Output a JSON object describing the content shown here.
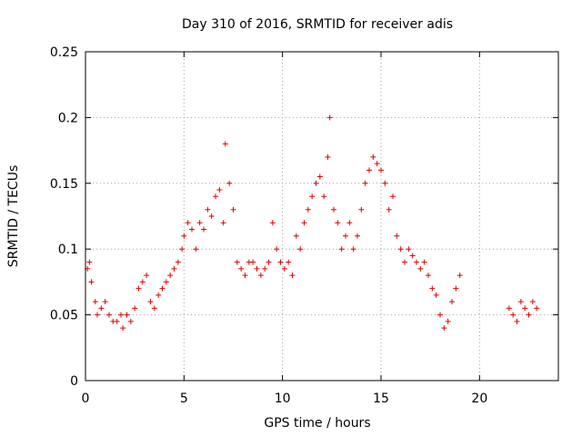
{
  "chart_data": {
    "type": "scatter",
    "title": "Day 310 of 2016, SRMTID for receiver adis",
    "xlabel": "GPS time / hours",
    "ylabel": "SRMTID / TECUs",
    "xlim": [
      0,
      24
    ],
    "ylim": [
      0,
      0.25
    ],
    "x_ticks": [
      0,
      5,
      10,
      15,
      20
    ],
    "x_tick_labels": [
      "0",
      "5",
      "10",
      "15",
      "20"
    ],
    "y_ticks": [
      0,
      0.05,
      0.1,
      0.15,
      0.2,
      0.25
    ],
    "y_tick_labels": [
      "0",
      "0.05",
      "0.1",
      "0.15",
      "0.2",
      "0.25"
    ],
    "grid": true,
    "grid_style": "dotted",
    "marker": "plus",
    "marker_color": "#e00000",
    "series": [
      {
        "name": "",
        "x": [
          0.1,
          0.2,
          0.3,
          0.5,
          0.6,
          0.8,
          1.0,
          1.2,
          1.4,
          1.6,
          1.8,
          1.9,
          2.1,
          2.3,
          2.5,
          2.7,
          2.9,
          3.1,
          3.3,
          3.5,
          3.7,
          3.9,
          4.1,
          4.3,
          4.5,
          4.7,
          4.9,
          5.0,
          5.2,
          5.4,
          5.6,
          5.8,
          6.0,
          6.2,
          6.4,
          6.6,
          6.8,
          7.0,
          7.1,
          7.3,
          7.5,
          7.7,
          7.9,
          8.1,
          8.3,
          8.5,
          8.7,
          8.9,
          9.1,
          9.3,
          9.5,
          9.7,
          9.9,
          10.1,
          10.3,
          10.5,
          10.7,
          10.9,
          11.1,
          11.3,
          11.5,
          11.7,
          11.9,
          12.1,
          12.3,
          12.4,
          12.6,
          12.8,
          13.0,
          13.2,
          13.4,
          13.6,
          13.8,
          14.0,
          14.2,
          14.4,
          14.6,
          14.8,
          15.0,
          15.2,
          15.4,
          15.6,
          15.8,
          16.0,
          16.2,
          16.4,
          16.6,
          16.8,
          17.0,
          17.2,
          17.4,
          17.6,
          17.8,
          18.0,
          18.2,
          18.4,
          18.6,
          18.8,
          19.0,
          21.5,
          21.7,
          21.9,
          22.1,
          22.3,
          22.5,
          22.7,
          22.9
        ],
        "y": [
          0.085,
          0.09,
          0.075,
          0.06,
          0.05,
          0.055,
          0.06,
          0.05,
          0.045,
          0.045,
          0.05,
          0.04,
          0.05,
          0.045,
          0.055,
          0.07,
          0.075,
          0.08,
          0.06,
          0.055,
          0.065,
          0.07,
          0.075,
          0.08,
          0.085,
          0.09,
          0.1,
          0.11,
          0.12,
          0.115,
          0.1,
          0.12,
          0.115,
          0.13,
          0.125,
          0.14,
          0.145,
          0.12,
          0.18,
          0.15,
          0.13,
          0.09,
          0.085,
          0.08,
          0.09,
          0.09,
          0.085,
          0.08,
          0.085,
          0.09,
          0.12,
          0.1,
          0.09,
          0.085,
          0.09,
          0.08,
          0.11,
          0.1,
          0.12,
          0.13,
          0.14,
          0.15,
          0.155,
          0.14,
          0.17,
          0.2,
          0.13,
          0.12,
          0.1,
          0.11,
          0.12,
          0.1,
          0.11,
          0.13,
          0.15,
          0.16,
          0.17,
          0.165,
          0.16,
          0.15,
          0.13,
          0.14,
          0.11,
          0.1,
          0.09,
          0.1,
          0.095,
          0.09,
          0.085,
          0.09,
          0.08,
          0.07,
          0.065,
          0.05,
          0.04,
          0.045,
          0.06,
          0.07,
          0.08,
          0.055,
          0.05,
          0.045,
          0.06,
          0.055,
          0.05,
          0.06,
          0.055
        ]
      }
    ]
  }
}
